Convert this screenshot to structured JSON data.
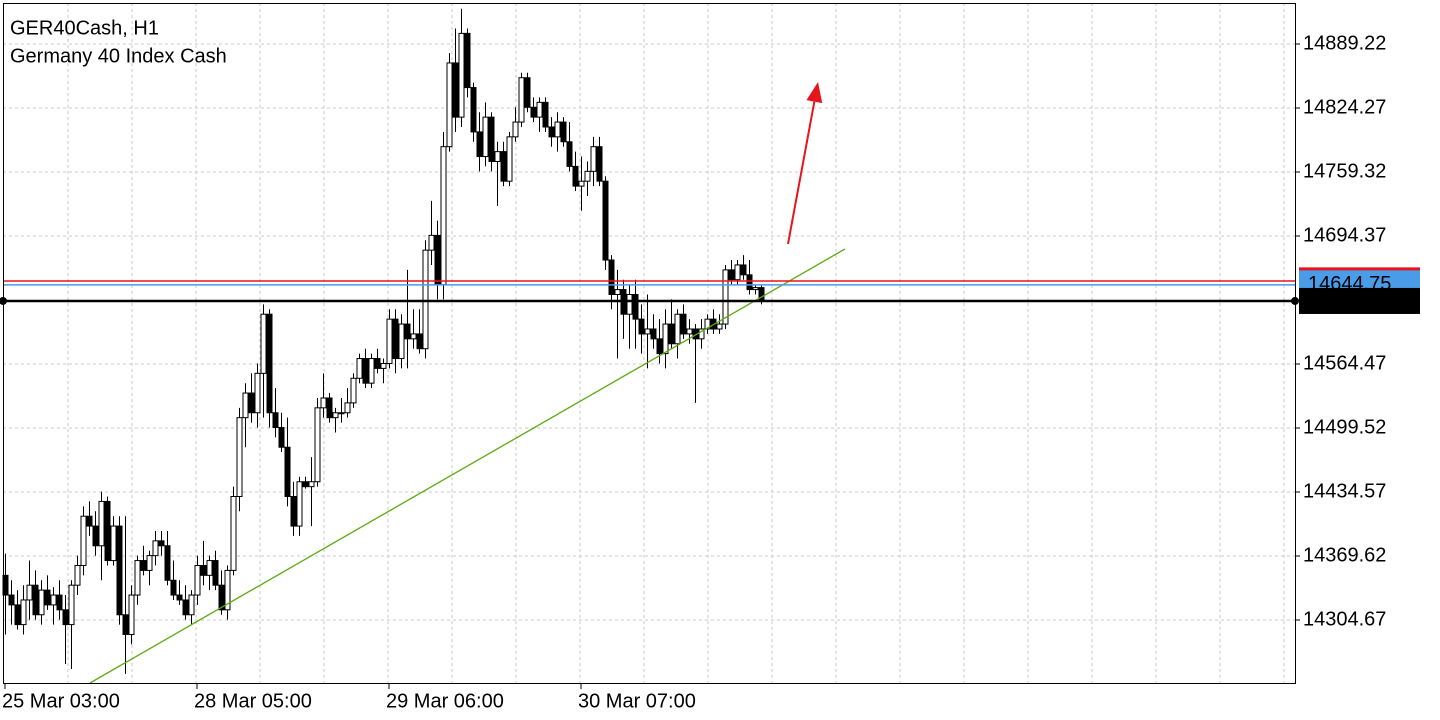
{
  "chart_data": {
    "type": "candlestick",
    "title": "GER40Cash, H1",
    "subtitle": "Germany 40 Index Cash",
    "ylim": [
      14240.74,
      14930.83
    ],
    "yticks": [
      14304.67,
      14369.62,
      14434.57,
      14499.52,
      14564.47,
      14694.37,
      14759.32,
      14824.27,
      14889.22
    ],
    "grid": true,
    "up_color": "#ffffff",
    "down_color": "#000000",
    "edge_color": "#000000",
    "categories": [
      "25 Mar 03:00",
      null,
      null,
      null,
      null,
      null,
      null,
      null,
      null,
      null,
      null,
      null,
      null,
      null,
      null,
      null,
      null,
      null,
      null,
      null,
      null,
      null,
      null,
      null,
      null,
      null,
      null,
      null,
      null,
      null,
      null,
      null,
      "28 Mar 05:00",
      null,
      null,
      null,
      null,
      null,
      null,
      null,
      null,
      null,
      null,
      null,
      null,
      null,
      null,
      null,
      null,
      null,
      null,
      null,
      null,
      null,
      null,
      null,
      null,
      null,
      null,
      null,
      null,
      null,
      null,
      null,
      "29 Mar 06:00",
      null,
      null,
      null,
      null,
      null,
      null,
      null,
      null,
      null,
      null,
      null,
      null,
      null,
      null,
      null,
      null,
      null,
      null,
      null,
      null,
      null,
      null,
      null,
      null,
      null,
      null,
      null,
      null,
      null,
      null,
      null,
      "30 Mar 07:00",
      null,
      null,
      null,
      null,
      null,
      null,
      null,
      null,
      null,
      null,
      null,
      null,
      null,
      null,
      null,
      null,
      null,
      null,
      null,
      null,
      null,
      null,
      null,
      null,
      null,
      null,
      null,
      null,
      null,
      null
    ],
    "candles": [
      [
        14350,
        14372,
        14290,
        14330
      ],
      [
        14330,
        14345,
        14300,
        14320
      ],
      [
        14320,
        14335,
        14295,
        14300
      ],
      [
        14300,
        14340,
        14290,
        14325
      ],
      [
        14325,
        14365,
        14305,
        14340
      ],
      [
        14340,
        14355,
        14305,
        14310
      ],
      [
        14310,
        14345,
        14300,
        14335
      ],
      [
        14335,
        14350,
        14315,
        14320
      ],
      [
        14320,
        14338,
        14300,
        14330
      ],
      [
        14330,
        14345,
        14305,
        14315
      ],
      [
        14315,
        14330,
        14260,
        14300
      ],
      [
        14300,
        14345,
        14255,
        14340
      ],
      [
        14340,
        14370,
        14330,
        14360
      ],
      [
        14360,
        14420,
        14350,
        14410
      ],
      [
        14410,
        14425,
        14390,
        14400
      ],
      [
        14400,
        14415,
        14370,
        14380
      ],
      [
        14380,
        14435,
        14345,
        14425
      ],
      [
        14425,
        14430,
        14360,
        14365
      ],
      [
        14365,
        14410,
        14360,
        14400
      ],
      [
        14400,
        14410,
        14300,
        14310
      ],
      [
        14310,
        14410,
        14250,
        14290
      ],
      [
        14290,
        14340,
        14280,
        14330
      ],
      [
        14330,
        14370,
        14320,
        14365
      ],
      [
        14365,
        14380,
        14350,
        14355
      ],
      [
        14355,
        14375,
        14340,
        14370
      ],
      [
        14370,
        14395,
        14360,
        14385
      ],
      [
        14385,
        14395,
        14370,
        14380
      ],
      [
        14380,
        14395,
        14340,
        14345
      ],
      [
        14345,
        14365,
        14325,
        14330
      ],
      [
        14330,
        14345,
        14320,
        14325
      ],
      [
        14325,
        14340,
        14305,
        14310
      ],
      [
        14310,
        14335,
        14300,
        14330
      ],
      [
        14330,
        14370,
        14320,
        14360
      ],
      [
        14360,
        14385,
        14340,
        14350
      ],
      [
        14350,
        14370,
        14335,
        14365
      ],
      [
        14365,
        14375,
        14335,
        14340
      ],
      [
        14340,
        14355,
        14310,
        14315
      ],
      [
        14315,
        14360,
        14305,
        14355
      ],
      [
        14355,
        14440,
        14350,
        14430
      ],
      [
        14430,
        14520,
        14415,
        14510
      ],
      [
        14510,
        14545,
        14480,
        14535
      ],
      [
        14535,
        14555,
        14505,
        14515
      ],
      [
        14515,
        14565,
        14500,
        14555
      ],
      [
        14555,
        14625,
        14510,
        14615
      ],
      [
        14615,
        14620,
        14500,
        14515
      ],
      [
        14515,
        14540,
        14490,
        14500
      ],
      [
        14500,
        14515,
        14475,
        14480
      ],
      [
        14480,
        14510,
        14420,
        14430
      ],
      [
        14430,
        14445,
        14390,
        14400
      ],
      [
        14400,
        14450,
        14390,
        14445
      ],
      [
        14445,
        14450,
        14438,
        14440
      ],
      [
        14440,
        14470,
        14400,
        14445
      ],
      [
        14445,
        14530,
        14440,
        14520
      ],
      [
        14520,
        14555,
        14510,
        14530
      ],
      [
        14530,
        14535,
        14505,
        14510
      ],
      [
        14510,
        14520,
        14495,
        14515
      ],
      [
        14515,
        14530,
        14505,
        14515
      ],
      [
        14515,
        14540,
        14510,
        14525
      ],
      [
        14525,
        14555,
        14520,
        14550
      ],
      [
        14550,
        14575,
        14545,
        14570
      ],
      [
        14570,
        14580,
        14540,
        14545
      ],
      [
        14545,
        14575,
        14540,
        14570
      ],
      [
        14570,
        14580,
        14555,
        14560
      ],
      [
        14560,
        14570,
        14545,
        14565
      ],
      [
        14565,
        14620,
        14560,
        14610
      ],
      [
        14610,
        14620,
        14555,
        14570
      ],
      [
        14570,
        14615,
        14560,
        14605
      ],
      [
        14605,
        14660,
        14560,
        14590
      ],
      [
        14590,
        14620,
        14580,
        14595
      ],
      [
        14595,
        14620,
        14575,
        14580
      ],
      [
        14580,
        14690,
        14570,
        14680
      ],
      [
        14680,
        14730,
        14665,
        14695
      ],
      [
        14695,
        14710,
        14630,
        14645
      ],
      [
        14645,
        14800,
        14630,
        14785
      ],
      [
        14785,
        14880,
        14780,
        14870
      ],
      [
        14870,
        14905,
        14800,
        14815
      ],
      [
        14815,
        14925,
        14805,
        14900
      ],
      [
        14900,
        14905,
        14835,
        14845
      ],
      [
        14845,
        14850,
        14790,
        14800
      ],
      [
        14800,
        14820,
        14760,
        14775
      ],
      [
        14775,
        14830,
        14765,
        14815
      ],
      [
        14815,
        14820,
        14760,
        14770
      ],
      [
        14770,
        14790,
        14725,
        14780
      ],
      [
        14780,
        14790,
        14745,
        14750
      ],
      [
        14750,
        14800,
        14745,
        14795
      ],
      [
        14795,
        14825,
        14790,
        14810
      ],
      [
        14810,
        14860,
        14805,
        14855
      ],
      [
        14855,
        14860,
        14820,
        14825
      ],
      [
        14825,
        14835,
        14810,
        14815
      ],
      [
        14815,
        14835,
        14800,
        14830
      ],
      [
        14830,
        14835,
        14800,
        14805
      ],
      [
        14805,
        14815,
        14785,
        14795
      ],
      [
        14795,
        14820,
        14780,
        14810
      ],
      [
        14810,
        14815,
        14785,
        14790
      ],
      [
        14790,
        14810,
        14760,
        14765
      ],
      [
        14765,
        14780,
        14740,
        14745
      ],
      [
        14745,
        14775,
        14720,
        14750
      ],
      [
        14750,
        14770,
        14735,
        14760
      ],
      [
        14760,
        14795,
        14745,
        14785
      ],
      [
        14785,
        14795,
        14745,
        14750
      ],
      [
        14750,
        14755,
        14660,
        14670
      ],
      [
        14670,
        14675,
        14620,
        14635
      ],
      [
        14635,
        14660,
        14570,
        14640
      ],
      [
        14640,
        14650,
        14590,
        14615
      ],
      [
        14615,
        14645,
        14580,
        14635
      ],
      [
        14635,
        14650,
        14580,
        14610
      ],
      [
        14610,
        14625,
        14575,
        14595
      ],
      [
        14595,
        14635,
        14560,
        14600
      ],
      [
        14600,
        14615,
        14580,
        14590
      ],
      [
        14590,
        14610,
        14565,
        14575
      ],
      [
        14575,
        14620,
        14560,
        14605
      ],
      [
        14605,
        14630,
        14580,
        14585
      ],
      [
        14585,
        14620,
        14570,
        14615
      ],
      [
        14615,
        14625,
        14590,
        14595
      ],
      [
        14595,
        14610,
        14585,
        14600
      ],
      [
        14600,
        14605,
        14525,
        14590
      ],
      [
        14590,
        14610,
        14580,
        14600
      ],
      [
        14600,
        14615,
        14595,
        14610
      ],
      [
        14610,
        14620,
        14595,
        14600
      ],
      [
        14600,
        14615,
        14595,
        14605
      ],
      [
        14605,
        14665,
        14600,
        14660
      ],
      [
        14660,
        14670,
        14645,
        14650
      ],
      [
        14650,
        14670,
        14645,
        14665
      ],
      [
        14665,
        14675,
        14650,
        14655
      ],
      [
        14655,
        14670,
        14635,
        14640
      ],
      [
        14640,
        14645,
        14635,
        14642
      ],
      [
        14642,
        14645,
        14625,
        14628.45
      ]
    ],
    "alert_line": {
      "value": 14648.7,
      "color": "#e8141c"
    },
    "ask": {
      "value": 14644.75,
      "color": "#4a9be8"
    },
    "bid": {
      "value": 14628.45,
      "color": "#000000"
    },
    "trendline": {
      "x": [
        14.17,
        140
      ],
      "y": [
        14240.74,
        14681.2
      ],
      "color": "#5aaa10"
    },
    "arrow": {
      "x": [
        130.5,
        135.5
      ],
      "y": [
        14686.3,
        14850.7
      ],
      "color": "#e8141c"
    }
  }
}
